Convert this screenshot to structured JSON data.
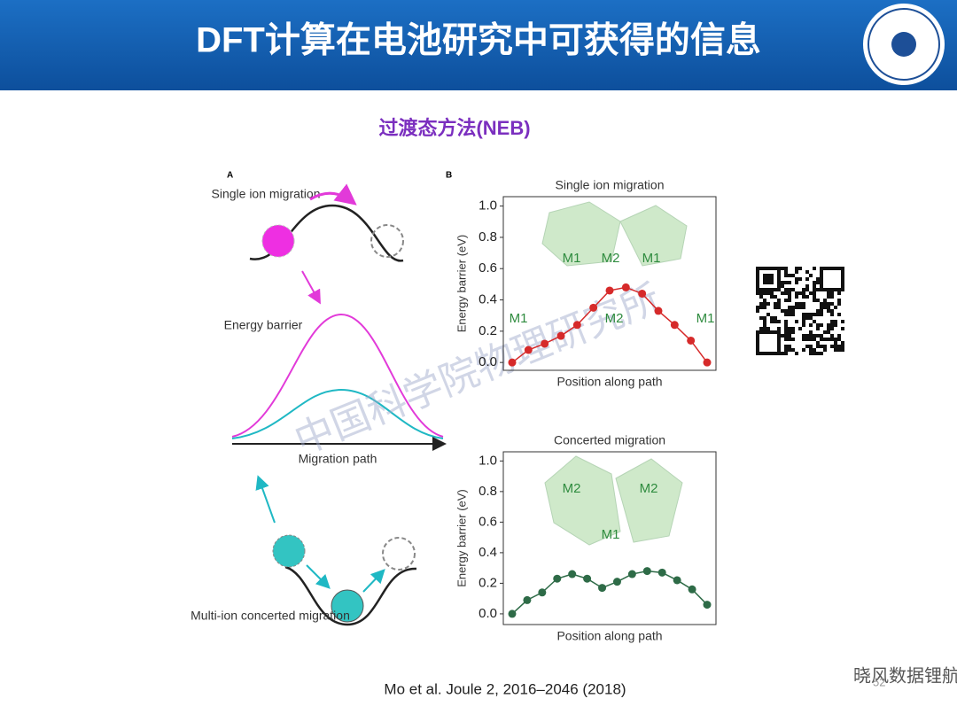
{
  "slide": {
    "title": "DFT计算在电池研究中可获得的信息",
    "subtitle": "过渡态方法(NEB)",
    "citation": "Mo et al.  Joule 2, 2016–2046 (2018)",
    "watermark": "中国科学院物理研究所",
    "footer_brand": "晓风数据锂航",
    "page_number": "52",
    "panel_a_label": "A",
    "panel_b_label": "B"
  },
  "diagram": {
    "single_ion": "Single ion migration",
    "energy_barrier": "Energy barrier",
    "migration_path": "Migration path",
    "multi_ion": "Multi-ion concerted migration"
  },
  "chart_data": [
    {
      "type": "line",
      "title": "Single ion migration",
      "xlabel": "Position along path",
      "ylabel": "Energy barrier (eV)",
      "color": "#d62a2a",
      "values": [
        0.0,
        0.08,
        0.12,
        0.17,
        0.24,
        0.35,
        0.46,
        0.48,
        0.44,
        0.33,
        0.24,
        0.14,
        0.0
      ],
      "ylim": [
        -0.05,
        1.06
      ],
      "yticks": [
        {
          "value": 0,
          "label": "0.0"
        },
        0.2,
        0.4,
        0.6,
        0.8,
        {
          "value": 1,
          "label": "1.0"
        }
      ],
      "annotations": [
        "M1",
        "M2",
        "M1",
        "M1",
        "M2",
        "M1"
      ]
    },
    {
      "type": "line",
      "title": "Concerted migration",
      "xlabel": "Position along path",
      "ylabel": "Energy barrier (eV)",
      "color": "#2e6b47",
      "values": [
        0.0,
        0.09,
        0.14,
        0.23,
        0.26,
        0.23,
        0.17,
        0.21,
        0.26,
        0.28,
        0.27,
        0.22,
        0.16,
        0.06
      ],
      "ylim": [
        -0.07,
        1.06
      ],
      "yticks": [
        {
          "value": 0,
          "label": "0.0"
        },
        0.2,
        0.4,
        0.6,
        0.8,
        {
          "value": 1,
          "label": "1.0"
        }
      ],
      "annotations": [
        "M2",
        "M2",
        "M1"
      ]
    }
  ]
}
